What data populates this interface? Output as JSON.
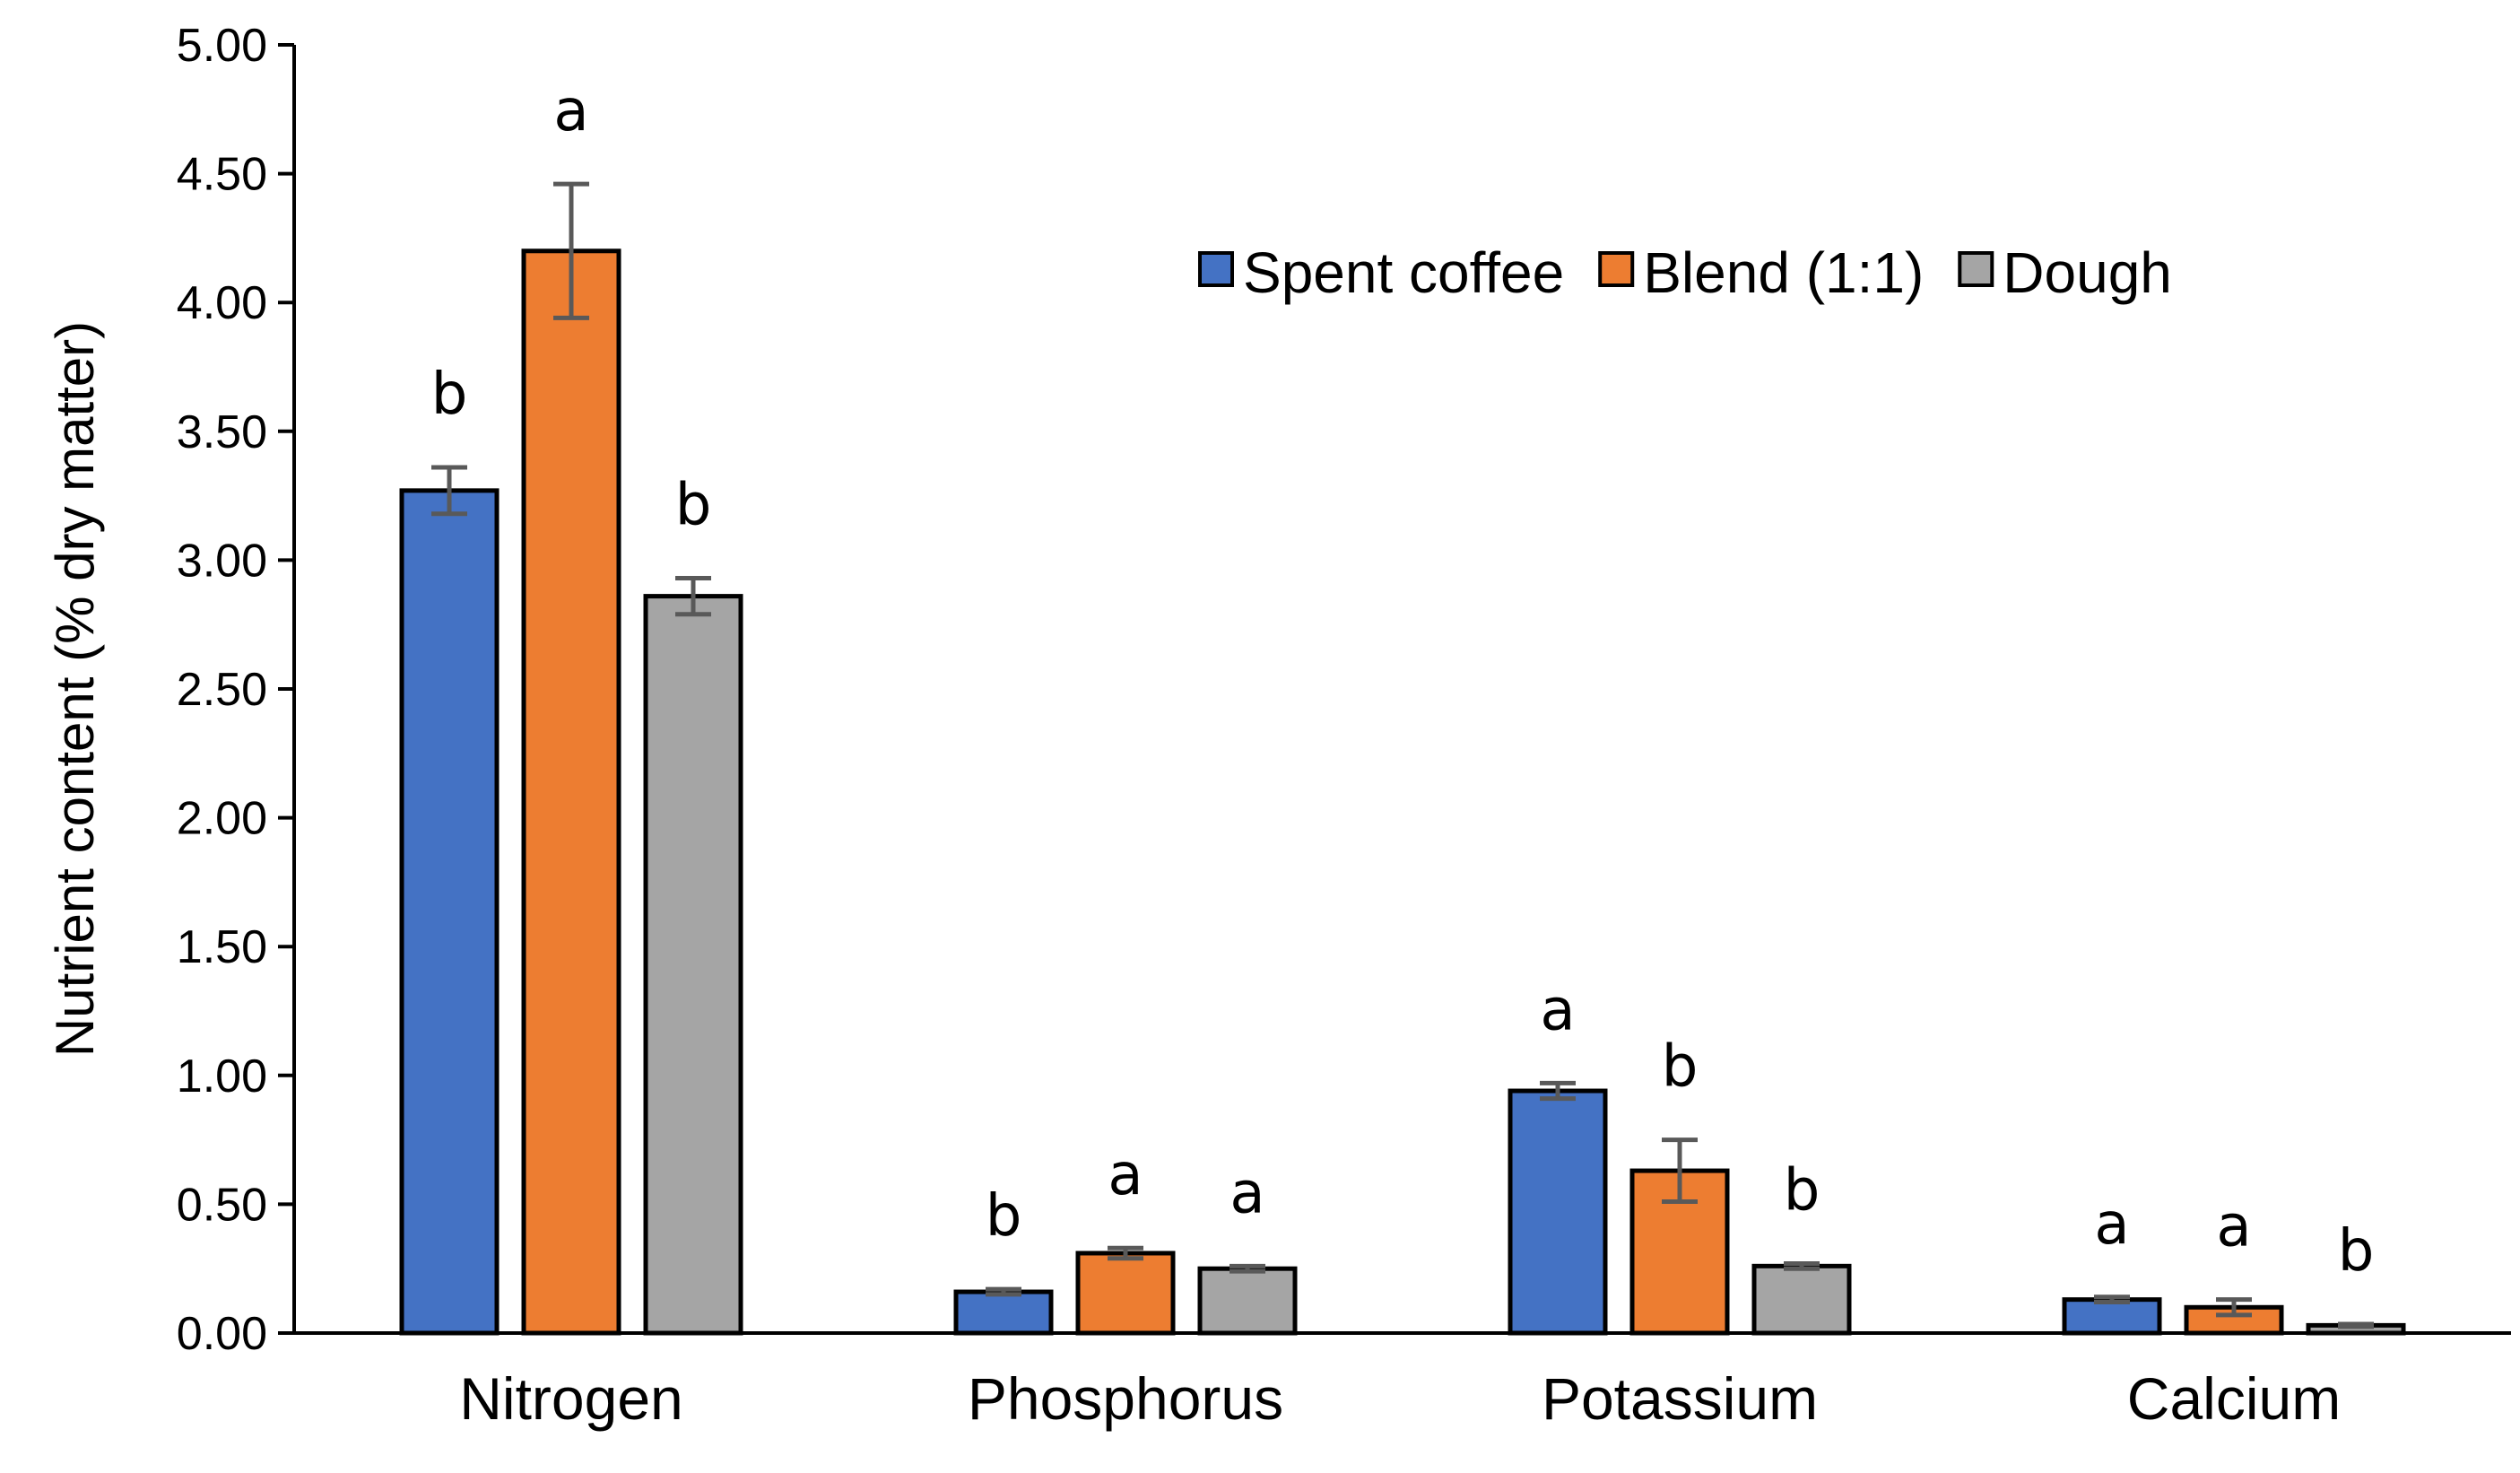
{
  "chart_data": {
    "type": "bar",
    "title": "",
    "xlabel": "",
    "ylabel": "Nutrient content (% dry matter)",
    "ylim": [
      0,
      5
    ],
    "yticks": [
      "0.00",
      "0.50",
      "1.00",
      "1.50",
      "2.00",
      "2.50",
      "3.00",
      "3.50",
      "4.00",
      "4.50",
      "5.00"
    ],
    "categories": [
      "Nitrogen",
      "Phosphorus",
      "Potassium",
      "Calcium"
    ],
    "legend_position": "top-right",
    "series": [
      {
        "name": "Spent coffee",
        "color": "#4472C4",
        "values": [
          3.27,
          0.16,
          0.94,
          0.13
        ],
        "errors": [
          0.09,
          0.01,
          0.03,
          0.01
        ],
        "letters": [
          "b",
          "b",
          "a",
          "a"
        ]
      },
      {
        "name": "Blend (1:1)",
        "color": "#ED7D31",
        "values": [
          4.2,
          0.31,
          0.63,
          0.1
        ],
        "errors": [
          0.26,
          0.02,
          0.12,
          0.03
        ],
        "letters": [
          "a",
          "a",
          "b",
          "a"
        ]
      },
      {
        "name": "Dough",
        "color": "#A5A5A5",
        "values": [
          2.86,
          0.25,
          0.26,
          0.03
        ],
        "errors": [
          0.07,
          0.01,
          0.01,
          0.005
        ],
        "letters": [
          "b",
          "a",
          "b",
          "b"
        ]
      }
    ]
  }
}
